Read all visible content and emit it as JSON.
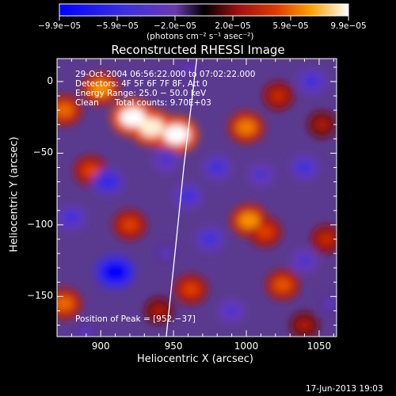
{
  "chart_data": {
    "type": "heatmap",
    "title": "Reconstructed RHESSI Image",
    "xlabel": "Heliocentric X (arcsec)",
    "ylabel": "Heliocentric Y (arcsec)",
    "xlim": [
      870,
      1062
    ],
    "ylim": [
      -178,
      16
    ],
    "x_ticks": [
      900,
      950,
      1000,
      1050
    ],
    "y_ticks": [
      0,
      -50,
      -100,
      -150
    ],
    "x_tick_labels": [
      "900",
      "950",
      "1000",
      "1050"
    ],
    "y_tick_labels": [
      "0",
      "−50",
      "−100",
      "−150"
    ],
    "colorbar": {
      "min": -9.9e-05,
      "max": 9.9e-05,
      "tick_labels": [
        "−9.9e−05",
        "−5.9e−05",
        "−2.0e−05",
        "2.0e−05",
        "5.9e−05",
        "9.9e−05"
      ],
      "units": "(photons cm⁻² s⁻¹ asec⁻²)"
    },
    "annotations": {
      "time_range": "29‑Oct‑2004 06:56:22.000 to 07:02:22.000",
      "detectors": "Detectors: 4F 5F 6F 7F 8F, Att 0",
      "energy": "Energy Range: 25.0 − 50.0 keV",
      "clean": "Clean      Total counts: 9.70E+03",
      "peak": "Position of Peak = [952,−37]"
    },
    "features": [
      {
        "x": 922,
        "y": -25,
        "value": 9.9e-05
      },
      {
        "x": 935,
        "y": -32,
        "value": 9.5e-05
      },
      {
        "x": 952,
        "y": -37,
        "value": 9.9e-05
      },
      {
        "x": 900,
        "y": -5,
        "value": 7e-05
      },
      {
        "x": 875,
        "y": -20,
        "value": 6e-05
      },
      {
        "x": 893,
        "y": -62,
        "value": 5e-05
      },
      {
        "x": 1000,
        "y": -32,
        "value": 6.5e-05
      },
      {
        "x": 1022,
        "y": -10,
        "value": 4e-05
      },
      {
        "x": 1002,
        "y": -97,
        "value": 7e-05
      },
      {
        "x": 1013,
        "y": -105,
        "value": 5e-05
      },
      {
        "x": 875,
        "y": -155,
        "value": 6e-05
      },
      {
        "x": 920,
        "y": -100,
        "value": 5e-05
      },
      {
        "x": 962,
        "y": -145,
        "value": 5e-05
      },
      {
        "x": 1025,
        "y": -142,
        "value": 5.5e-05
      },
      {
        "x": 1055,
        "y": -110,
        "value": 4e-05
      },
      {
        "x": 1052,
        "y": -30,
        "value": 3e-05
      },
      {
        "x": 940,
        "y": -160,
        "value": 3e-05
      },
      {
        "x": 1040,
        "y": -170,
        "value": 3e-05
      },
      {
        "x": 910,
        "y": -133,
        "value": -9.9e-05
      },
      {
        "x": 905,
        "y": -70,
        "value": -6e-05
      },
      {
        "x": 880,
        "y": -95,
        "value": -5e-05
      },
      {
        "x": 960,
        "y": -80,
        "value": -5e-05
      },
      {
        "x": 945,
        "y": -55,
        "value": -4e-05
      },
      {
        "x": 980,
        "y": -60,
        "value": -5e-05
      },
      {
        "x": 1010,
        "y": -65,
        "value": -4e-05
      },
      {
        "x": 1040,
        "y": -60,
        "value": -5e-05
      },
      {
        "x": 1045,
        "y": 0,
        "value": -5e-05
      },
      {
        "x": 975,
        "y": -110,
        "value": -5e-05
      },
      {
        "x": 1040,
        "y": -125,
        "value": -4e-05
      },
      {
        "x": 990,
        "y": -160,
        "value": -4e-05
      },
      {
        "x": 945,
        "y": -120,
        "value": -3e-05
      },
      {
        "x": 890,
        "y": -175,
        "value": -3e-05
      },
      {
        "x": 1058,
        "y": -155,
        "value": -3e-05
      },
      {
        "x": 960,
        "y": 8,
        "value": -3e-05
      }
    ],
    "limb": [
      [
        966,
        16
      ],
      [
        957,
        -60
      ],
      [
        951,
        -120
      ],
      [
        945,
        -178
      ]
    ],
    "grid": false
  },
  "footer": {
    "timestamp": "17‑Jun‑2013 19:03"
  }
}
